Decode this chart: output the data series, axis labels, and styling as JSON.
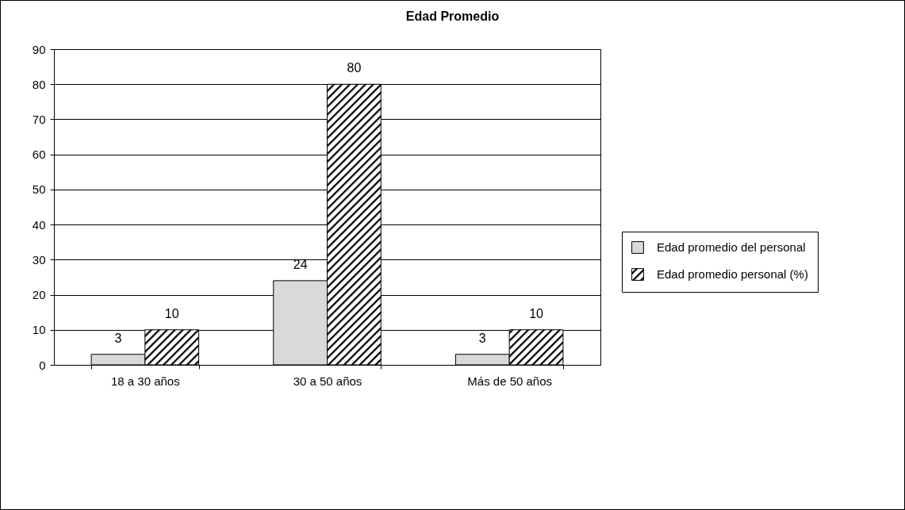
{
  "chart_data": {
    "type": "bar",
    "title": "Edad Promedio",
    "categories": [
      "18 a 30 años",
      "30 a 50 años",
      "Más de 50 años"
    ],
    "series": [
      {
        "name": "Edad promedio del personal",
        "color": "#d9d9d9",
        "values": [
          3,
          24,
          3
        ]
      },
      {
        "name": "Edad promedio personal (%)",
        "color": "#000000",
        "values": [
          10,
          80,
          10
        ]
      }
    ],
    "ylim": [
      0,
      90
    ],
    "yticks": [
      0,
      10,
      20,
      30,
      40,
      50,
      60,
      70,
      80,
      90
    ],
    "grid": "y",
    "legend": "right",
    "data_labels": true
  }
}
